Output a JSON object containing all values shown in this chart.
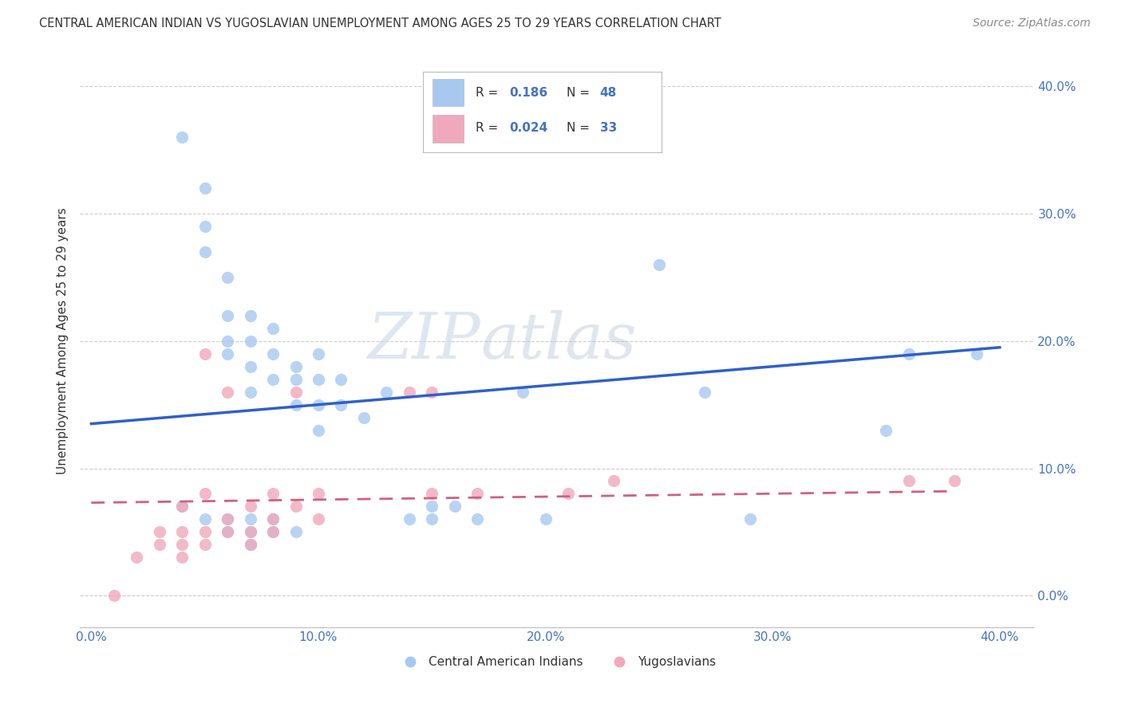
{
  "title": "CENTRAL AMERICAN INDIAN VS YUGOSLAVIAN UNEMPLOYMENT AMONG AGES 25 TO 29 YEARS CORRELATION CHART",
  "source": "Source: ZipAtlas.com",
  "ylabel": "Unemployment Among Ages 25 to 29 years",
  "x_ticks": [
    0.0,
    0.1,
    0.2,
    0.3,
    0.4
  ],
  "x_tick_labels": [
    "0.0%",
    "10.0%",
    "20.0%",
    "30.0%",
    "40.0%"
  ],
  "y_ticks": [
    0.0,
    0.1,
    0.2,
    0.3,
    0.4
  ],
  "y_tick_labels": [
    "0.0%",
    "10.0%",
    "20.0%",
    "30.0%",
    "40.0%"
  ],
  "xlim": [
    -0.005,
    0.415
  ],
  "ylim": [
    -0.025,
    0.425
  ],
  "blue_color": "#A8C8F0",
  "pink_color": "#F0A8BC",
  "blue_line_color": "#3060C8",
  "pink_line_color": "#D06080",
  "blue_scatter_x": [
    0.04,
    0.05,
    0.05,
    0.05,
    0.06,
    0.06,
    0.06,
    0.06,
    0.07,
    0.07,
    0.07,
    0.07,
    0.08,
    0.08,
    0.08,
    0.09,
    0.09,
    0.09,
    0.1,
    0.1,
    0.1,
    0.1,
    0.11,
    0.11,
    0.12,
    0.13,
    0.14,
    0.15,
    0.15,
    0.16,
    0.17,
    0.19,
    0.2,
    0.25,
    0.27,
    0.29,
    0.35,
    0.36,
    0.39
  ],
  "blue_scatter_y": [
    0.36,
    0.32,
    0.29,
    0.27,
    0.25,
    0.22,
    0.2,
    0.19,
    0.22,
    0.2,
    0.18,
    0.16,
    0.21,
    0.19,
    0.17,
    0.18,
    0.17,
    0.15,
    0.19,
    0.17,
    0.15,
    0.13,
    0.17,
    0.15,
    0.14,
    0.16,
    0.06,
    0.07,
    0.06,
    0.07,
    0.06,
    0.16,
    0.06,
    0.26,
    0.16,
    0.06,
    0.13,
    0.19,
    0.19
  ],
  "blue_scatter2_x": [
    0.04,
    0.05,
    0.06,
    0.06,
    0.07,
    0.07,
    0.07,
    0.08,
    0.08,
    0.09
  ],
  "blue_scatter2_y": [
    0.07,
    0.06,
    0.06,
    0.05,
    0.06,
    0.05,
    0.04,
    0.06,
    0.05,
    0.05
  ],
  "pink_scatter_x": [
    0.01,
    0.02,
    0.03,
    0.03,
    0.04,
    0.04,
    0.04,
    0.04,
    0.05,
    0.05,
    0.05,
    0.05,
    0.06,
    0.06,
    0.06,
    0.07,
    0.07,
    0.07,
    0.08,
    0.08,
    0.08,
    0.09,
    0.09,
    0.1,
    0.1,
    0.14,
    0.15,
    0.15,
    0.17,
    0.21,
    0.23,
    0.36,
    0.38
  ],
  "pink_scatter_y": [
    0.0,
    0.03,
    0.04,
    0.05,
    0.03,
    0.04,
    0.05,
    0.07,
    0.04,
    0.05,
    0.08,
    0.19,
    0.05,
    0.06,
    0.16,
    0.04,
    0.05,
    0.07,
    0.05,
    0.06,
    0.08,
    0.07,
    0.16,
    0.06,
    0.08,
    0.16,
    0.08,
    0.16,
    0.08,
    0.08,
    0.09,
    0.09,
    0.09
  ],
  "blue_line_x": [
    0.0,
    0.4
  ],
  "blue_line_y": [
    0.135,
    0.195
  ],
  "pink_line_x": [
    0.0,
    0.38
  ],
  "pink_line_y": [
    0.073,
    0.082
  ],
  "grid_color": "#CCCCCC",
  "background_color": "#FFFFFF",
  "title_color": "#333333",
  "source_color": "#888888"
}
